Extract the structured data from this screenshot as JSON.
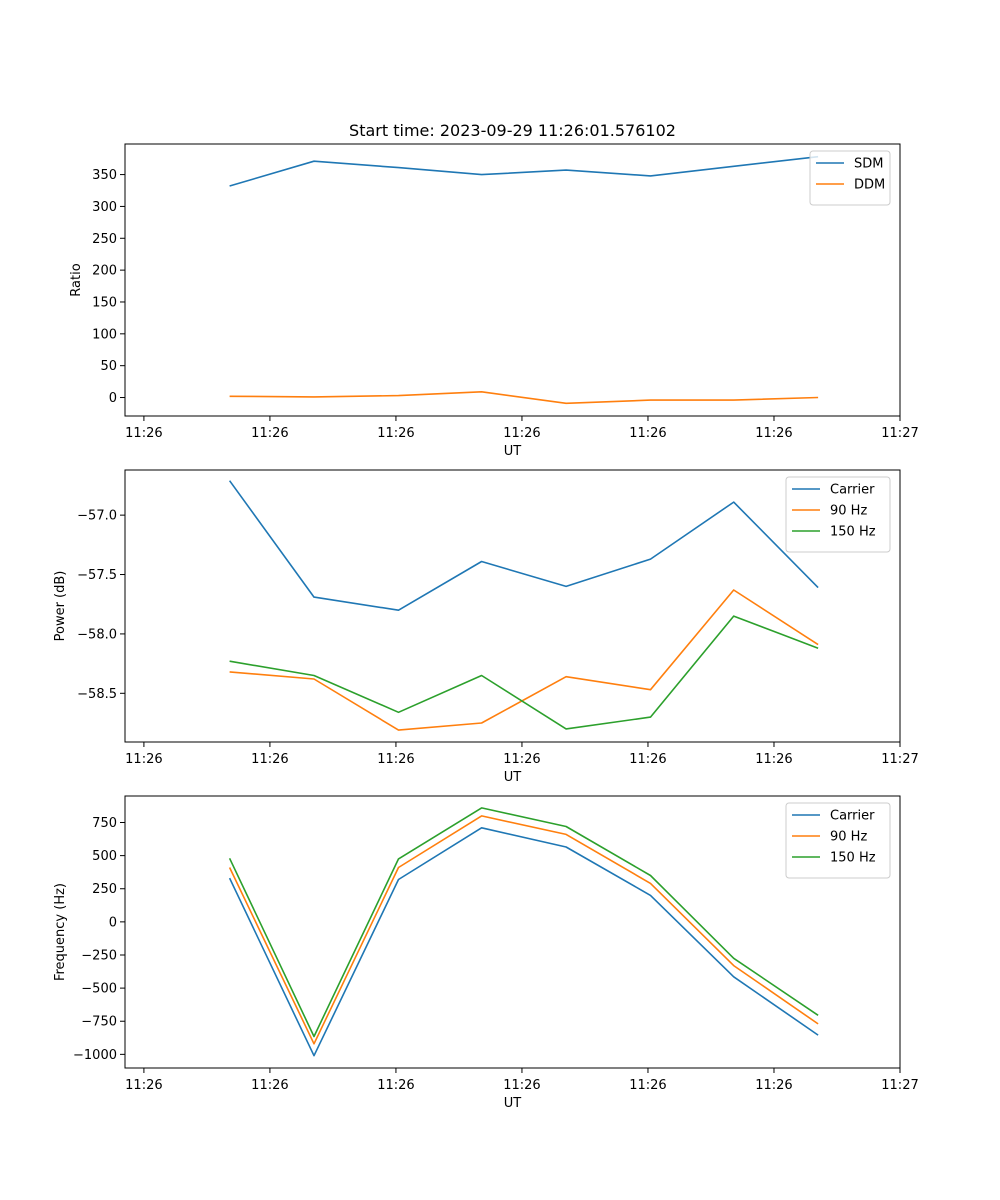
{
  "chart_data": [
    {
      "type": "line",
      "title": "Start time: 2023-09-29 11:26:01.576102",
      "xlabel": "UT",
      "ylabel": "Ratio",
      "x": [
        0.83,
        1.5,
        2.17,
        2.83,
        3.5,
        4.17,
        4.83,
        5.5
      ],
      "xlim": [
        0,
        6.15
      ],
      "xticks": [
        0.15,
        1.15,
        2.15,
        3.15,
        4.15,
        5.15,
        6.15
      ],
      "xtick_labels": [
        "11:26",
        "11:26",
        "11:26",
        "11:26",
        "11:26",
        "11:26",
        "11:27"
      ],
      "ylim": [
        -29,
        398
      ],
      "yticks": [
        0,
        50,
        100,
        150,
        200,
        250,
        300,
        350
      ],
      "ytick_labels": [
        "0",
        "50",
        "100",
        "150",
        "200",
        "250",
        "300",
        "350"
      ],
      "legend_position": "top-right",
      "series": [
        {
          "name": "SDM",
          "color": "#1f77b4",
          "values": [
            332,
            371,
            361,
            350,
            357,
            348,
            363,
            378
          ]
        },
        {
          "name": "DDM",
          "color": "#ff7f0e",
          "values": [
            2,
            1,
            3,
            9,
            -9,
            -4,
            -4,
            0
          ]
        }
      ]
    },
    {
      "type": "line",
      "title": "",
      "xlabel": "UT",
      "ylabel": "Power (dB)",
      "x": [
        0.83,
        1.5,
        2.17,
        2.83,
        3.5,
        4.17,
        4.83,
        5.5
      ],
      "xlim": [
        0,
        6.15
      ],
      "xticks": [
        0.15,
        1.15,
        2.15,
        3.15,
        4.15,
        5.15,
        6.15
      ],
      "xtick_labels": [
        "11:26",
        "11:26",
        "11:26",
        "11:26",
        "11:26",
        "11:26",
        "11:27"
      ],
      "ylim": [
        -58.91,
        -56.62
      ],
      "yticks": [
        -58.5,
        -58.0,
        -57.5,
        -57.0
      ],
      "ytick_labels": [
        "−58.5",
        "−58.0",
        "−57.5",
        "−57.0"
      ],
      "legend_position": "top-right",
      "series": [
        {
          "name": "Carrier",
          "color": "#1f77b4",
          "values": [
            -56.71,
            -57.69,
            -57.8,
            -57.39,
            -57.6,
            -57.37,
            -56.89,
            -57.61
          ]
        },
        {
          "name": "90 Hz",
          "color": "#ff7f0e",
          "values": [
            -58.32,
            -58.38,
            -58.81,
            -58.75,
            -58.36,
            -58.47,
            -57.63,
            -58.09
          ]
        },
        {
          "name": "150 Hz",
          "color": "#2ca02c",
          "values": [
            -58.23,
            -58.35,
            -58.66,
            -58.35,
            -58.8,
            -58.7,
            -57.85,
            -58.12
          ]
        }
      ]
    },
    {
      "type": "line",
      "title": "",
      "xlabel": "UT",
      "ylabel": "Frequency (Hz)",
      "x": [
        0.83,
        1.5,
        2.17,
        2.83,
        3.5,
        4.17,
        4.83,
        5.5
      ],
      "xlim": [
        0,
        6.15
      ],
      "xticks": [
        0.15,
        1.15,
        2.15,
        3.15,
        4.15,
        5.15,
        6.15
      ],
      "xtick_labels": [
        "11:26",
        "11:26",
        "11:26",
        "11:26",
        "11:26",
        "11:26",
        "11:27"
      ],
      "ylim": [
        -1103,
        950
      ],
      "yticks": [
        -1000,
        -750,
        -500,
        -250,
        0,
        250,
        500,
        750
      ],
      "ytick_labels": [
        "−1000",
        "−750",
        "−500",
        "−250",
        "0",
        "250",
        "500",
        "750"
      ],
      "legend_position": "top-right",
      "series": [
        {
          "name": "Carrier",
          "color": "#1f77b4",
          "values": [
            330,
            -1010,
            320,
            710,
            565,
            200,
            -415,
            -855
          ]
        },
        {
          "name": "90 Hz",
          "color": "#ff7f0e",
          "values": [
            410,
            -920,
            410,
            800,
            660,
            290,
            -330,
            -770
          ]
        },
        {
          "name": "150 Hz",
          "color": "#2ca02c",
          "values": [
            480,
            -865,
            475,
            860,
            720,
            350,
            -275,
            -705
          ]
        }
      ]
    }
  ]
}
